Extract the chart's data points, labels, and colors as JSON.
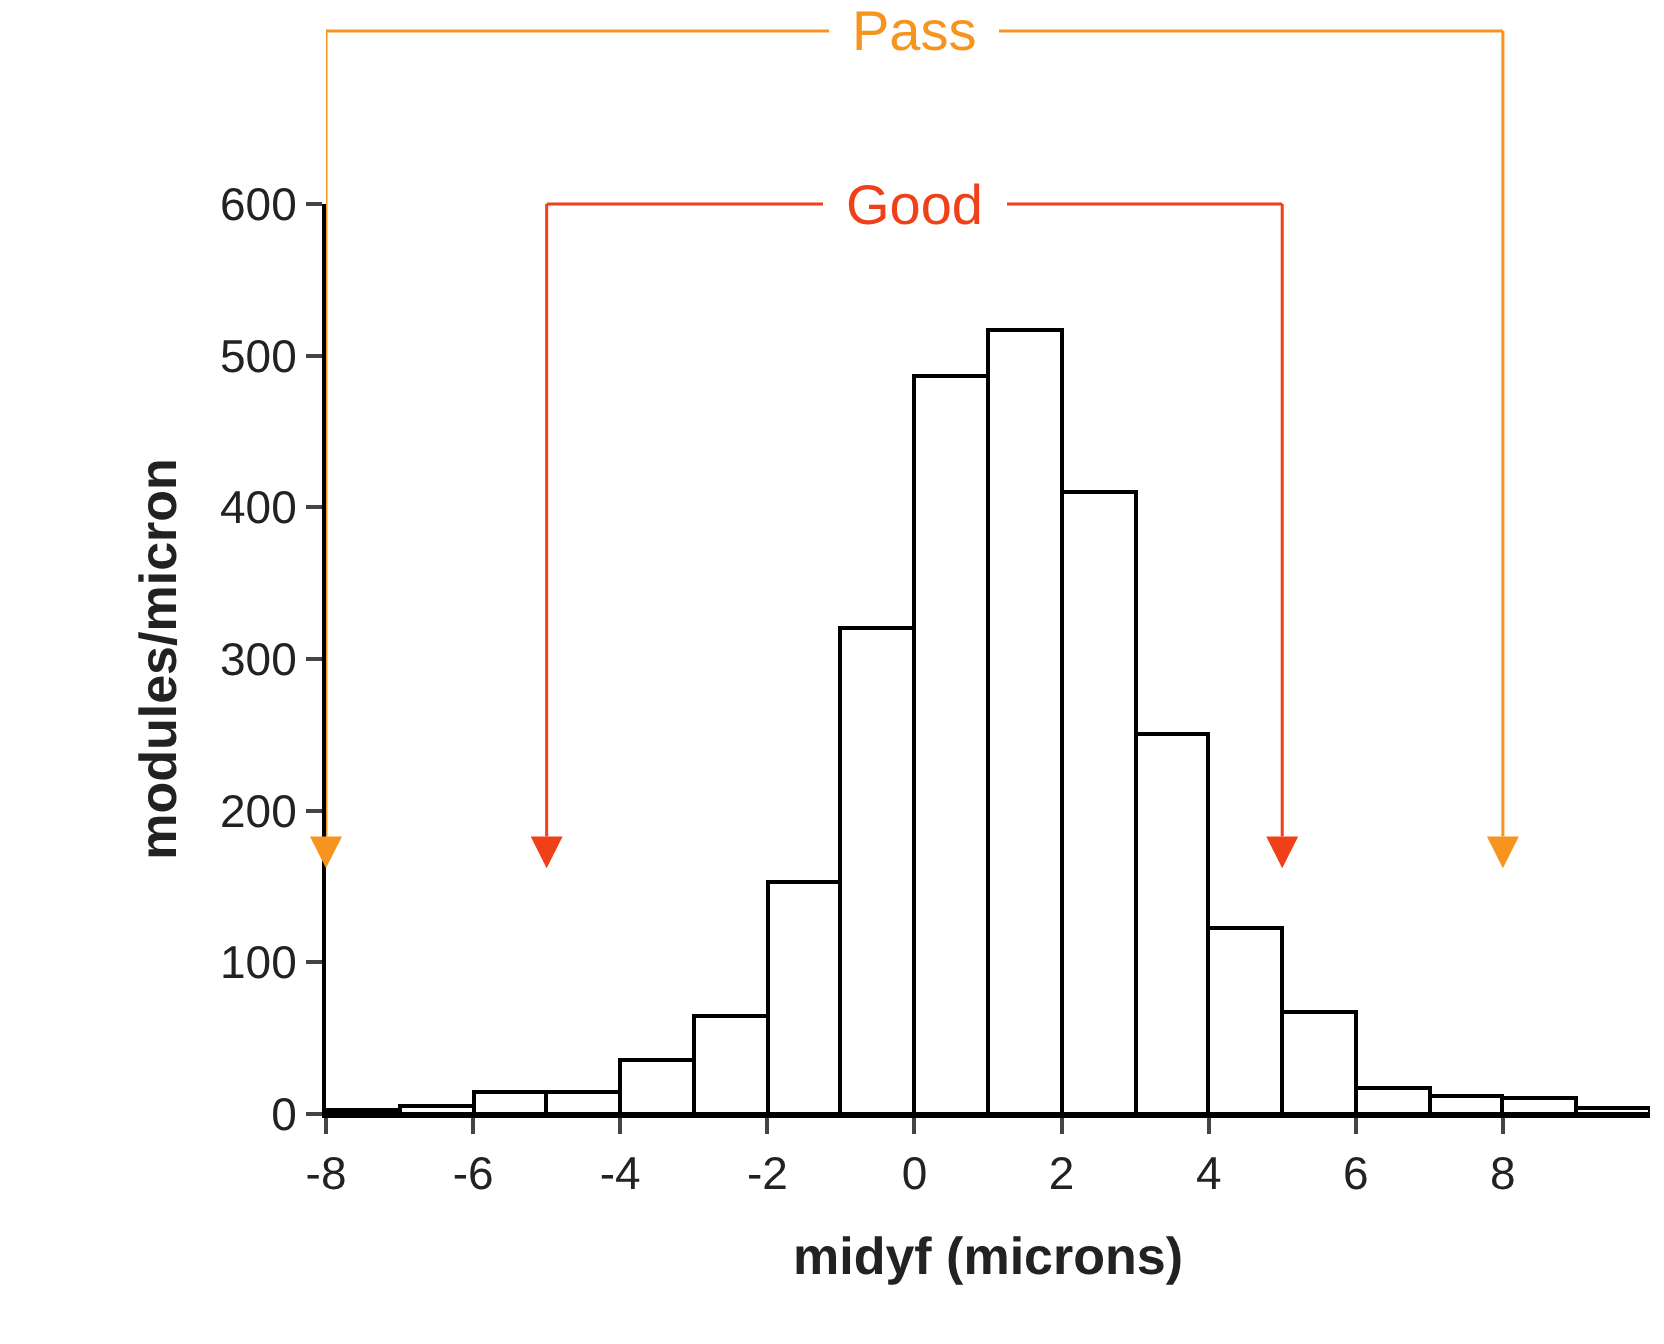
{
  "chart_data": {
    "type": "histogram",
    "xlabel": "midyf (microns)",
    "ylabel": "modules/micron",
    "bins": [
      -8,
      -7,
      -6,
      -5,
      -4,
      -3,
      -2,
      -1,
      0,
      1,
      2,
      3,
      4,
      5,
      6,
      7,
      8,
      9,
      10
    ],
    "values": [
      3,
      5,
      15,
      15,
      35,
      65,
      153,
      320,
      487,
      517,
      410,
      250,
      123,
      67,
      17,
      12,
      10,
      4
    ],
    "color": "#ffffff",
    "xlim": [
      -8,
      10
    ],
    "xticks": [
      -8,
      -6,
      -4,
      -2,
      0,
      2,
      4,
      6,
      8
    ],
    "ylim": [
      0,
      600
    ],
    "yticks": [
      0,
      100,
      200,
      300,
      400,
      500,
      600
    ],
    "ref_lines": [
      {
        "axis": "x",
        "value": -8,
        "color": "#f7941d"
      },
      {
        "axis": "x",
        "value": 8,
        "color": "#f7941d"
      },
      {
        "axis": "x",
        "value": -5,
        "color": "#f0401a"
      },
      {
        "axis": "x",
        "value": 5,
        "color": "#f0401a"
      }
    ],
    "annotations": [
      "Pass",
      "Good"
    ],
    "grid": false,
    "legend": false
  }
}
